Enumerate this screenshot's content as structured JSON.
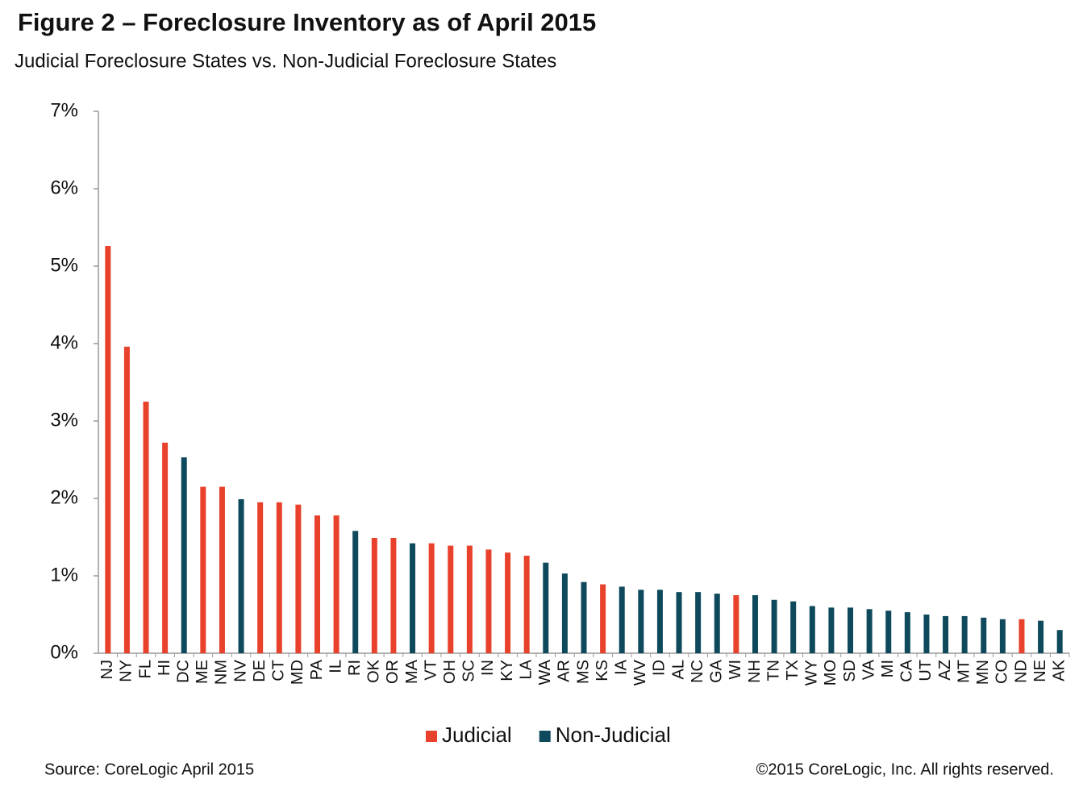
{
  "chart_data": {
    "type": "bar",
    "title": "Figure 2 – Foreclosure Inventory as of April 2015",
    "subtitle": "Judicial Foreclosure States vs. Non-Judicial Foreclosure States",
    "source": "Source: CoreLogic April 2015",
    "copyright": "©2015 CoreLogic, Inc. All rights reserved.",
    "categories": [
      "NJ",
      "NY",
      "FL",
      "HI",
      "DC",
      "ME",
      "NM",
      "NV",
      "DE",
      "CT",
      "MD",
      "PA",
      "IL",
      "RI",
      "OK",
      "OR",
      "MA",
      "VT",
      "OH",
      "SC",
      "IN",
      "KY",
      "LA",
      "WA",
      "AR",
      "MS",
      "KS",
      "IA",
      "WV",
      "ID",
      "AL",
      "NC",
      "GA",
      "WI",
      "NH",
      "TN",
      "TX",
      "WY",
      "MO",
      "SD",
      "VA",
      "MI",
      "CA",
      "UT",
      "AZ",
      "MT",
      "MN",
      "CO",
      "ND",
      "NE",
      "AK"
    ],
    "series": [
      {
        "name": "Judicial",
        "color": "#e8412c",
        "values": [
          5.26,
          3.96,
          3.25,
          2.72,
          null,
          2.15,
          2.15,
          null,
          1.95,
          1.95,
          1.92,
          1.78,
          1.78,
          null,
          1.49,
          1.49,
          null,
          1.42,
          1.39,
          1.39,
          1.34,
          1.3,
          1.26,
          null,
          null,
          null,
          0.89,
          null,
          null,
          null,
          null,
          null,
          null,
          0.75,
          null,
          null,
          null,
          null,
          null,
          null,
          null,
          null,
          null,
          null,
          null,
          null,
          null,
          null,
          0.44,
          null,
          null
        ]
      },
      {
        "name": "Non-Judicial",
        "color": "#0e4a5c",
        "values": [
          null,
          null,
          null,
          null,
          2.53,
          null,
          null,
          1.99,
          null,
          null,
          null,
          null,
          null,
          1.58,
          null,
          null,
          1.42,
          null,
          null,
          null,
          null,
          null,
          null,
          1.17,
          1.03,
          0.92,
          null,
          0.86,
          0.82,
          0.82,
          0.79,
          0.79,
          0.77,
          null,
          0.75,
          0.69,
          0.67,
          0.61,
          0.59,
          0.59,
          0.57,
          0.55,
          0.53,
          0.5,
          0.48,
          0.48,
          0.46,
          0.44,
          null,
          0.42,
          0.3
        ]
      }
    ],
    "ylim": [
      0,
      7
    ],
    "yticks": [
      {
        "value": 0,
        "label": "0%"
      },
      {
        "value": 1,
        "label": "1%"
      },
      {
        "value": 2,
        "label": "2%"
      },
      {
        "value": 3,
        "label": "3%"
      },
      {
        "value": 4,
        "label": "4%"
      },
      {
        "value": 5,
        "label": "5%"
      },
      {
        "value": 6,
        "label": "6%"
      },
      {
        "value": 7,
        "label": "7%"
      }
    ],
    "grid": false,
    "legend": "bottom"
  }
}
